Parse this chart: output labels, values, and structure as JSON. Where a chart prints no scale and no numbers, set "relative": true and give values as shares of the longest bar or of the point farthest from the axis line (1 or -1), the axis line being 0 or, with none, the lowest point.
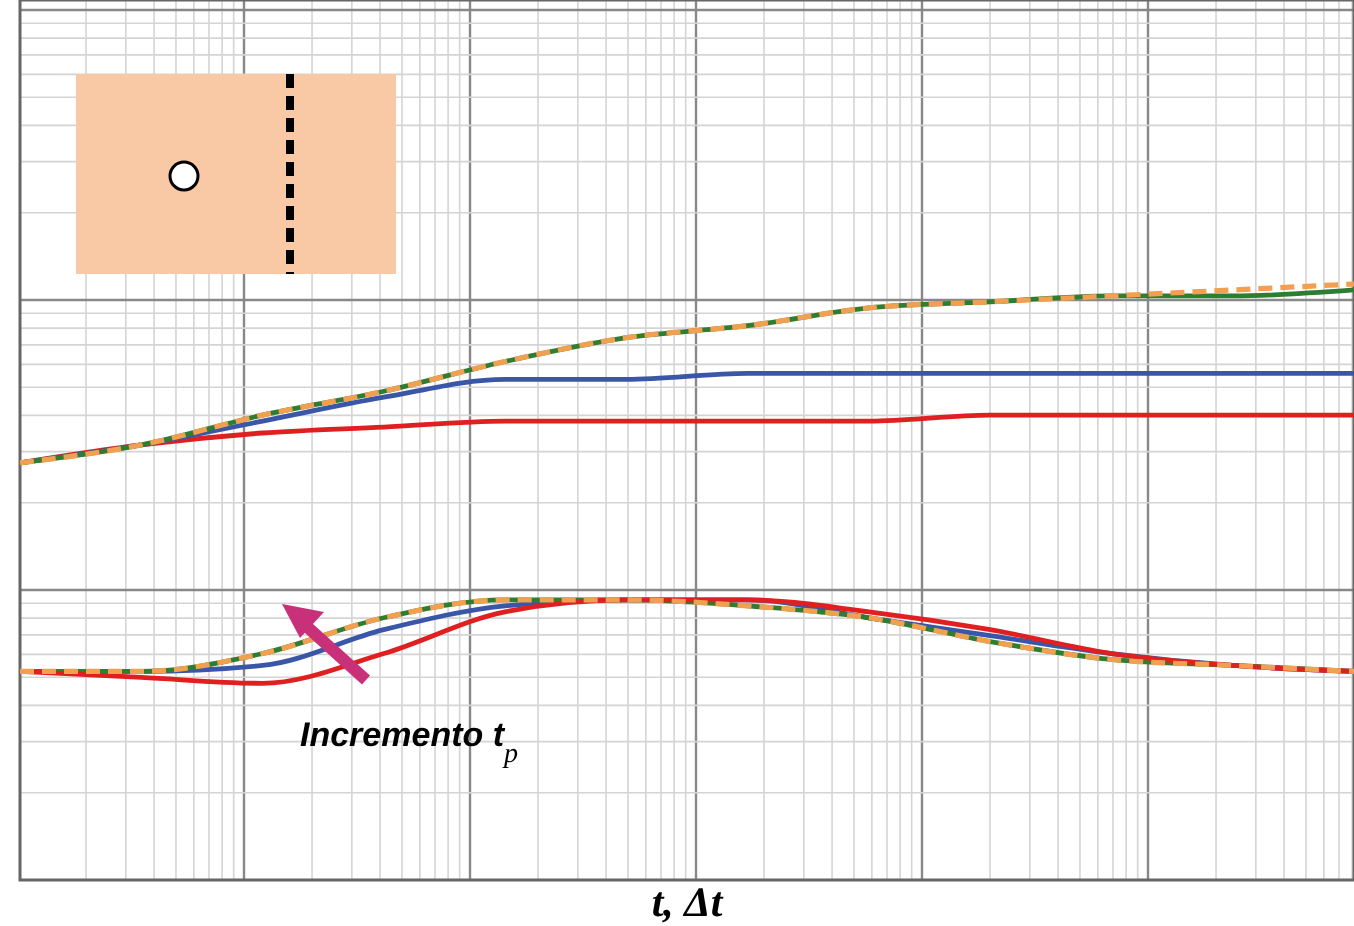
{
  "chart_data": {
    "type": "line",
    "relative": true,
    "xlabel": "t, Δt",
    "grid": true,
    "categories": [
      null,
      null,
      null,
      null,
      null,
      null,
      null,
      null,
      null,
      null,
      null,
      null
    ],
    "annotations": [
      "Incremento t$_{p}$"
    ],
    "series": [
      {
        "color": "#e02020",
        "values": [
          0.7,
          0.73,
          0.75,
          0.76,
          0.77,
          0.77,
          0.77,
          0.77,
          0.78,
          0.78,
          0.78,
          0.78
        ]
      },
      {
        "color": "#3a56a8",
        "values": [
          0.7,
          0.73,
          0.77,
          0.81,
          0.84,
          0.84,
          0.85,
          0.85,
          0.85,
          0.85,
          0.85,
          0.85
        ]
      },
      {
        "color": "#2e7d32",
        "values": [
          0.7,
          0.73,
          0.78,
          0.82,
          0.87,
          0.91,
          0.93,
          0.96,
          0.97,
          0.98,
          0.98,
          0.99
        ]
      },
      {
        "color": "#f0a050",
        "line_style": "dashed",
        "values": [
          0.7,
          0.73,
          0.78,
          0.82,
          0.87,
          0.91,
          0.93,
          0.96,
          0.97,
          0.98,
          0.99,
          1.0
        ]
      },
      {
        "color": "#3a56a8",
        "values": [
          0.35,
          0.35,
          0.36,
          0.42,
          0.46,
          0.47,
          0.47,
          0.44,
          0.41,
          0.38,
          0.36,
          0.35
        ]
      },
      {
        "color": "#2e7d32",
        "values": [
          0.35,
          0.35,
          0.38,
          0.44,
          0.47,
          0.47,
          0.46,
          0.44,
          0.4,
          0.37,
          0.36,
          0.35
        ]
      },
      {
        "color": "#e02020",
        "values": [
          0.35,
          0.34,
          0.33,
          0.38,
          0.45,
          0.47,
          0.47,
          0.45,
          0.42,
          0.38,
          0.36,
          0.35
        ]
      },
      {
        "color": "#f0a050",
        "line_style": "dashed",
        "values": [
          0.35,
          0.35,
          0.38,
          0.44,
          0.47,
          0.47,
          0.46,
          0.44,
          0.4,
          0.37,
          0.36,
          0.35
        ]
      }
    ]
  }
}
